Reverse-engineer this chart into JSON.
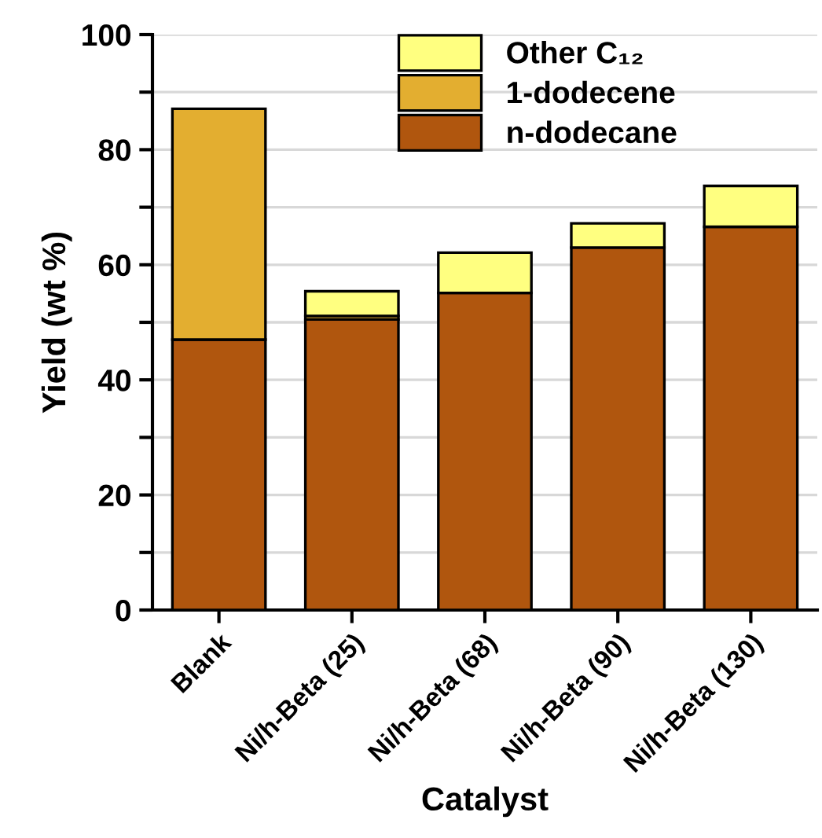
{
  "chart_data": {
    "type": "bar",
    "stacked": true,
    "xlabel": "Catalyst",
    "ylabel": "Yield (wt %)",
    "categories": [
      "Blank",
      "Ni/h-Beta (25)",
      "Ni/h-Beta (68)",
      "Ni/h-Beta (90)",
      "Ni/h-Beta (130)"
    ],
    "series": [
      {
        "name": "n-dodecane",
        "color": "#b0560e",
        "values": [
          47.0,
          50.5,
          55.1,
          63.0,
          66.6
        ]
      },
      {
        "name": "1-dodecene",
        "color": "#e3ae30",
        "values": [
          40.1,
          0.6,
          null,
          null,
          null
        ]
      },
      {
        "name": "Other C₁₂",
        "color": "#ffff80",
        "values": [
          null,
          4.3,
          7.0,
          4.2,
          7.1
        ]
      }
    ],
    "ylim": [
      0,
      100
    ],
    "yticks": [
      0,
      {
        "value": 10,
        "label": null
      },
      20,
      {
        "value": 30,
        "label": null
      },
      40,
      {
        "value": 50,
        "label": null
      },
      60,
      {
        "value": 70,
        "label": null
      },
      80,
      {
        "value": 90,
        "label": null
      },
      100
    ],
    "grid": "y",
    "legend": "top"
  }
}
